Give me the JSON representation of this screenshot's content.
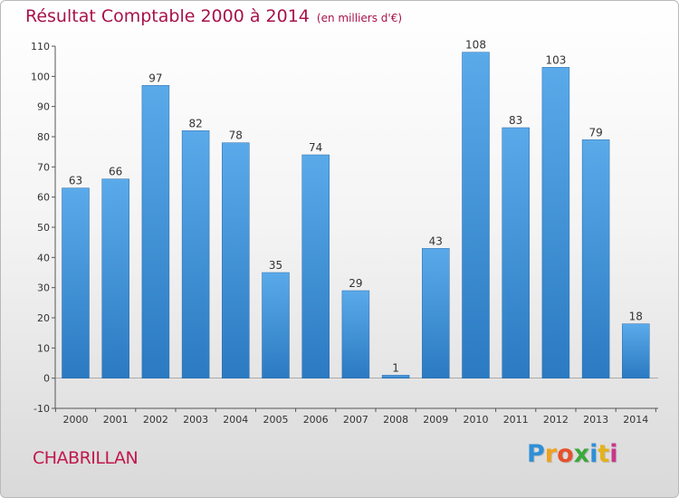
{
  "title": "Résultat Comptable 2000 à 2014",
  "subtitle": "(en milliers d'€)",
  "commune": "CHABRILLAN",
  "logo": {
    "text": "Proxiti",
    "letters": [
      "P",
      "r",
      "o",
      "x",
      "i",
      "t",
      "i"
    ],
    "colors": [
      "#2f8fd6",
      "#f0a21b",
      "#e6512d",
      "#3da83b",
      "#2f8fd6",
      "#e4b21a",
      "#c8378a"
    ]
  },
  "colors": {
    "title": "#a8124a",
    "bar_top": "#5aaaea",
    "bar_bottom": "#2b7ac2",
    "axis": "#333333"
  },
  "chart_data": {
    "type": "bar",
    "title": "Résultat Comptable 2000 à 2014",
    "ylabel": "en milliers d'€",
    "xlabel": "",
    "ylim": [
      -10,
      110
    ],
    "yticks": [
      -10,
      0,
      10,
      20,
      30,
      40,
      50,
      60,
      70,
      80,
      90,
      100,
      110
    ],
    "grid": false,
    "categories": [
      "2000",
      "2001",
      "2002",
      "2003",
      "2004",
      "2005",
      "2006",
      "2007",
      "2008",
      "2009",
      "2010",
      "2011",
      "2012",
      "2013",
      "2014"
    ],
    "values": [
      63,
      66,
      97,
      82,
      78,
      35,
      74,
      29,
      1,
      43,
      108,
      83,
      103,
      79,
      18
    ]
  }
}
